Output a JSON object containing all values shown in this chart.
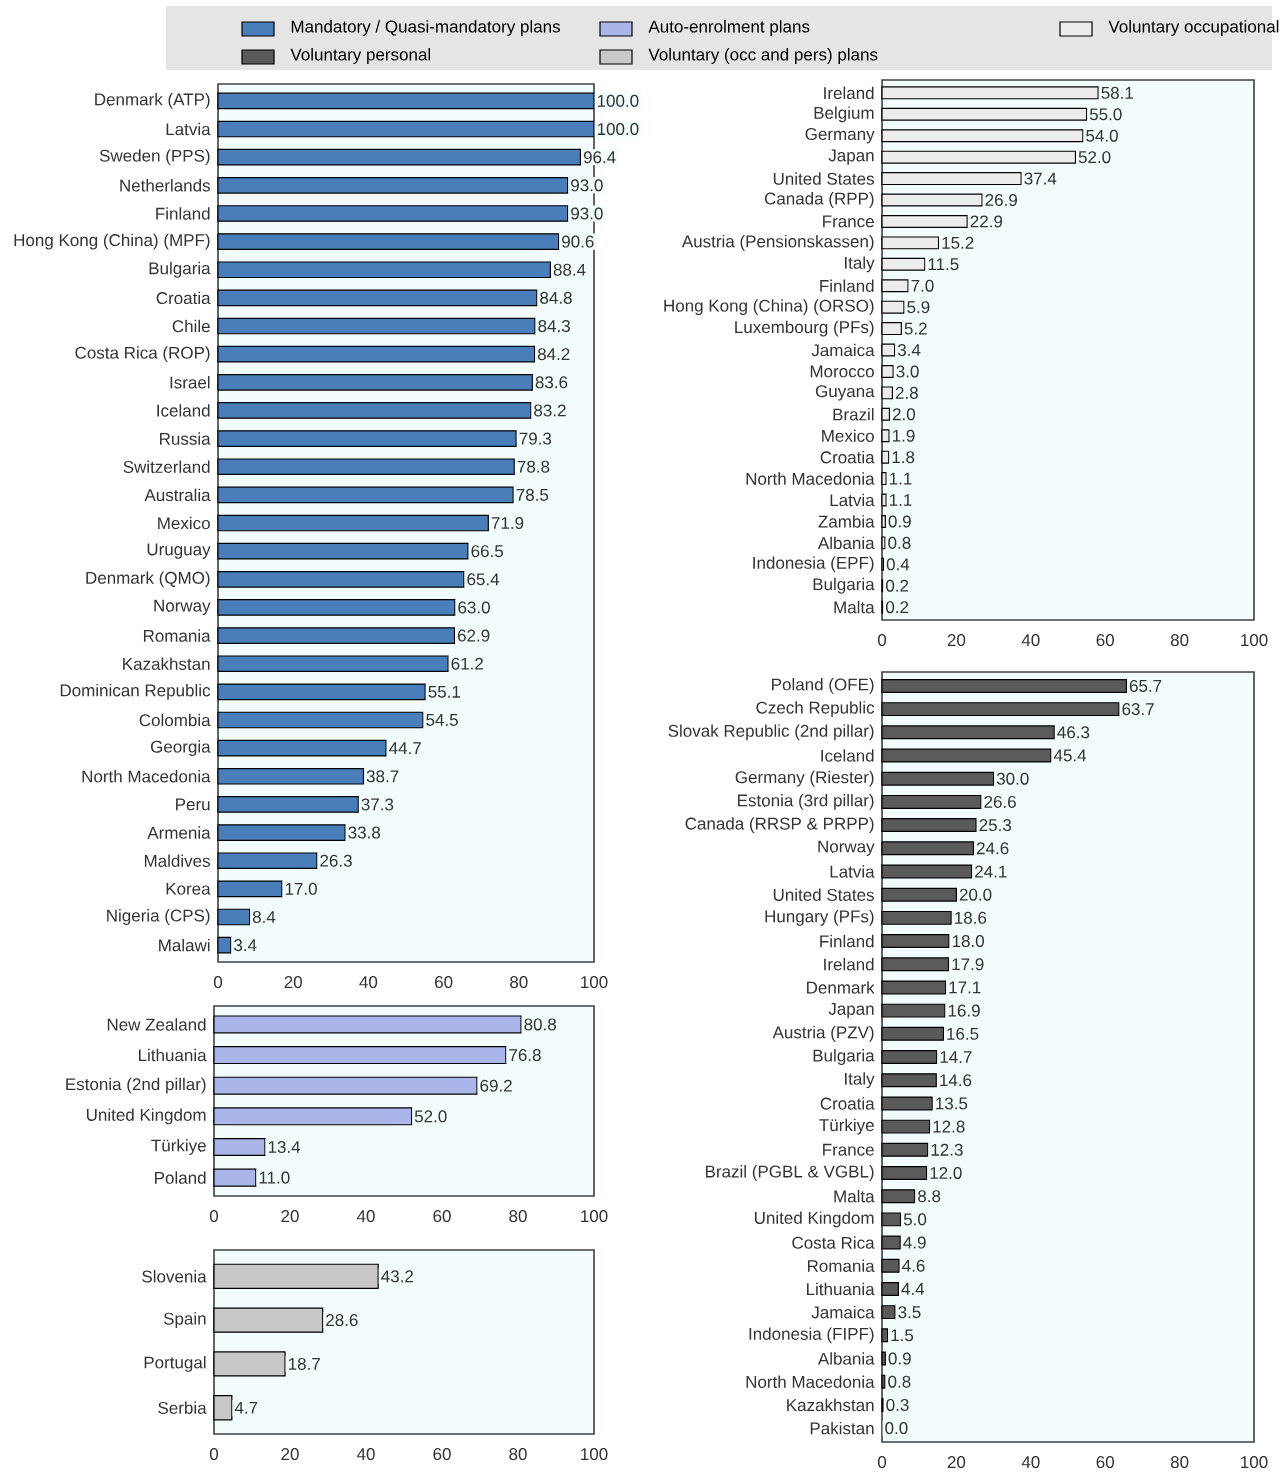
{
  "chart_data": [
    {
      "type": "bar",
      "orientation": "horizontal",
      "legend": "top",
      "xlim": [
        0,
        100
      ],
      "xticks": [
        0,
        20,
        40,
        60,
        80,
        100
      ],
      "categories": [
        "Denmark (ATP)",
        "Latvia",
        "Sweden (PPS)",
        "Netherlands",
        "Finland",
        "Hong Kong (China) (MPF)",
        "Bulgaria",
        "Croatia",
        "Chile",
        "Costa Rica (ROP)",
        "Israel",
        "Iceland",
        "Russia",
        "Switzerland",
        "Australia",
        "Mexico",
        "Uruguay",
        "Denmark (QMO)",
        "Norway",
        "Romania",
        "Kazakhstan",
        "Dominican Republic",
        "Colombia",
        "Georgia",
        "North Macedonia",
        "Peru",
        "Armenia",
        "Maldives",
        "Korea",
        "Nigeria (CPS)",
        "Malawi"
      ],
      "series": [
        {
          "name": "Mandatory / Quasi-mandatory plans",
          "color": "#4a7ebb",
          "values": [
            100.0,
            100.0,
            96.4,
            93.0,
            93.0,
            90.6,
            88.4,
            84.8,
            84.3,
            84.2,
            83.6,
            83.2,
            79.3,
            78.8,
            78.5,
            71.9,
            66.5,
            65.4,
            63.0,
            62.9,
            61.2,
            55.1,
            54.5,
            44.7,
            38.7,
            37.3,
            33.8,
            26.3,
            17.0,
            8.4,
            3.4
          ],
          "value_labels": [
            "100.0",
            "100.0",
            "96.4",
            "93.0",
            "93.0",
            "90.6",
            "88.4",
            "84.8",
            "84.3",
            "84.2",
            "83.6",
            "83.2",
            "79.3",
            "78.8",
            "78.5",
            "71.9",
            "66.5",
            "65.4",
            "63.0",
            "62.9",
            "61.2",
            "55.1",
            "54.5",
            "44.7",
            "38.7",
            "37.3",
            "33.8",
            "26.3",
            "17.0",
            "8.4",
            "3.4"
          ]
        }
      ]
    },
    {
      "type": "bar",
      "orientation": "horizontal",
      "legend": "top",
      "xlim": [
        0,
        100
      ],
      "xticks": [
        0,
        20,
        40,
        60,
        80,
        100
      ],
      "categories": [
        "New Zealand",
        "Lithuania",
        "Estonia (2nd pillar)",
        "United Kingdom",
        "Türkiye",
        "Poland"
      ],
      "series": [
        {
          "name": "Auto-enrolment plans",
          "color": "#aab6ea",
          "values": [
            80.8,
            76.8,
            69.2,
            52.0,
            13.4,
            11.0
          ],
          "value_labels": [
            "80.8",
            "76.8",
            "69.2",
            "52.0",
            "13.4",
            "11.0"
          ]
        }
      ]
    },
    {
      "type": "bar",
      "orientation": "horizontal",
      "legend": "top",
      "xlim": [
        0,
        100
      ],
      "xticks": [
        0,
        20,
        40,
        60,
        80,
        100
      ],
      "categories": [
        "Slovenia",
        "Spain",
        "Portugal",
        "Serbia"
      ],
      "series": [
        {
          "name": "Voluntary (occ and pers) plans",
          "color": "#c8c8c8",
          "values": [
            43.2,
            28.6,
            18.7,
            4.7
          ],
          "value_labels": [
            "43.2",
            "28.6",
            "18.7",
            "4.7"
          ]
        }
      ]
    },
    {
      "type": "bar",
      "orientation": "horizontal",
      "legend": "top",
      "xlim": [
        0,
        100
      ],
      "xticks": [
        0,
        20,
        40,
        60,
        80,
        100
      ],
      "categories": [
        "Ireland",
        "Belgium",
        "Germany",
        "Japan",
        "United States",
        "Canada (RPP)",
        "France",
        "Austria (Pensionskassen)",
        "Italy",
        "Finland",
        "Hong Kong (China) (ORSO)",
        "Luxembourg (PFs)",
        "Jamaica",
        "Morocco",
        "Guyana",
        "Brazil",
        "Mexico",
        "Croatia",
        "North Macedonia",
        "Latvia",
        "Zambia",
        "Albania",
        "Indonesia (EPF)",
        "Bulgaria",
        "Malta"
      ],
      "series": [
        {
          "name": "Voluntary occupational",
          "color": "#ececec",
          "values": [
            58.1,
            55.0,
            54.0,
            52.0,
            37.4,
            26.9,
            22.9,
            15.2,
            11.5,
            7.0,
            5.9,
            5.2,
            3.4,
            3.0,
            2.8,
            2.0,
            1.9,
            1.8,
            1.1,
            1.1,
            0.9,
            0.8,
            0.4,
            0.2,
            0.2
          ],
          "value_labels": [
            "58.1",
            "55.0",
            "54.0",
            "52.0",
            "37.4",
            "26.9",
            "22.9",
            "15.2",
            "11.5",
            "7.0",
            "5.9",
            "5.2",
            "3.4",
            "3.0",
            "2.8",
            "2.0",
            "1.9",
            "1.8",
            "1.1",
            "1.1",
            "0.9",
            "0.8",
            "0.4",
            "0.2",
            "0.2"
          ]
        }
      ]
    },
    {
      "type": "bar",
      "orientation": "horizontal",
      "legend": "top",
      "xlim": [
        0,
        100
      ],
      "xticks": [
        0,
        20,
        40,
        60,
        80,
        100
      ],
      "categories": [
        "Poland (OFE)",
        "Czech Republic",
        "Slovak Republic (2nd pillar)",
        "Iceland",
        "Germany (Riester)",
        "Estonia (3rd pillar)",
        "Canada (RRSP & PRPP)",
        "Norway",
        "Latvia",
        "United States",
        "Hungary (PFs)",
        "Finland",
        "Ireland",
        "Denmark",
        "Japan",
        "Austria (PZV)",
        "Bulgaria",
        "Italy",
        "Croatia",
        "Türkiye",
        "France",
        "Brazil (PGBL & VGBL)",
        "Malta",
        "United Kingdom",
        "Costa Rica",
        "Romania",
        "Lithuania",
        "Jamaica",
        "Indonesia (FIPF)",
        "Albania",
        "North Macedonia",
        "Kazakhstan",
        "Pakistan"
      ],
      "series": [
        {
          "name": "Voluntary personal",
          "color": "#5a5a5a",
          "values": [
            65.7,
            63.7,
            46.3,
            45.4,
            30.0,
            26.6,
            25.3,
            24.6,
            24.1,
            20.0,
            18.6,
            18.0,
            17.9,
            17.1,
            16.9,
            16.5,
            14.7,
            14.6,
            13.5,
            12.8,
            12.3,
            12.0,
            8.8,
            5.0,
            4.9,
            4.6,
            4.4,
            3.5,
            1.5,
            0.9,
            0.8,
            0.3,
            0.0
          ],
          "value_labels": [
            "65.7",
            "63.7",
            "46.3",
            "45.4",
            "30.0",
            "26.6",
            "25.3",
            "24.6",
            "24.1",
            "20.0",
            "18.6",
            "18.0",
            "17.9",
            "17.1",
            "16.9",
            "16.5",
            "14.7",
            "14.6",
            "13.5",
            "12.8",
            "12.3",
            "12.0",
            "8.8",
            "5.0",
            "4.9",
            "4.6",
            "4.4",
            "3.5",
            "1.5",
            "0.9",
            "0.8",
            "0.3",
            "0.0"
          ]
        }
      ]
    }
  ]
}
